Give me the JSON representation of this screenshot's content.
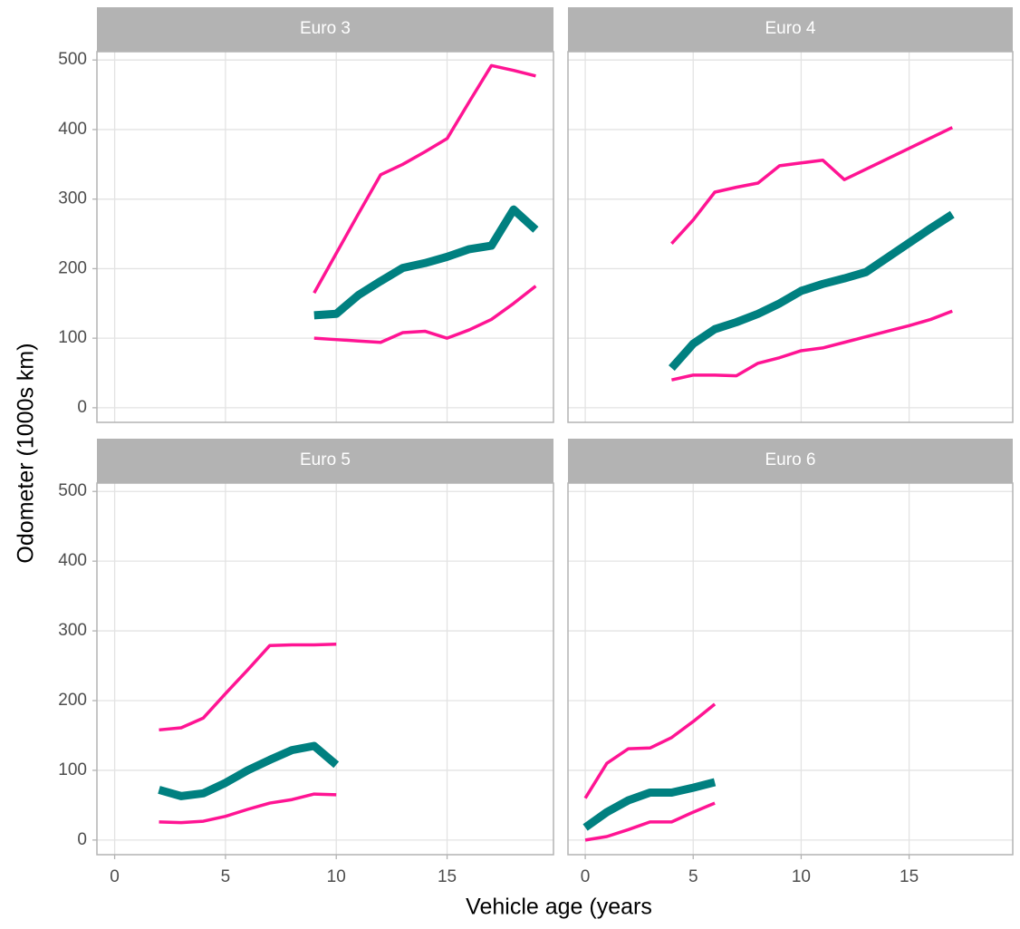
{
  "axis_labels": {
    "x": "Vehicle age (years",
    "y": "Odometer (1000s km)"
  },
  "chart_data": [
    {
      "type": "line",
      "title": "Euro 3",
      "x": [
        9,
        10,
        11,
        12,
        13,
        14,
        15,
        16,
        17,
        18,
        19
      ],
      "xlim": [
        -0.8,
        19.8
      ],
      "ylim": [
        -21,
        512
      ],
      "xticks": [
        0,
        5,
        10,
        15
      ],
      "yticks": [
        0,
        100,
        200,
        300,
        400,
        500
      ],
      "grid": true,
      "series": [
        {
          "color": "#ff1493",
          "linewidth": 3.5,
          "values": [
            165,
            222,
            279,
            335,
            350,
            368,
            387,
            440,
            492,
            485,
            477
          ]
        },
        {
          "color": "#008080",
          "linewidth": 9,
          "values": [
            133,
            135,
            162,
            182,
            201,
            208,
            217,
            228,
            233,
            285,
            256
          ]
        },
        {
          "color": "#ff1493",
          "linewidth": 3.5,
          "values": [
            100,
            98,
            96,
            94,
            108,
            110,
            100,
            112,
            127,
            150,
            175
          ]
        }
      ]
    },
    {
      "type": "line",
      "title": "Euro 4",
      "x": [
        4,
        5,
        6,
        7,
        8,
        9,
        10,
        11,
        12,
        13,
        14,
        15,
        16,
        17
      ],
      "xlim": [
        -0.8,
        19.8
      ],
      "ylim": [
        -21,
        512
      ],
      "xticks": [
        0,
        5,
        10,
        15
      ],
      "yticks": [
        0,
        100,
        200,
        300,
        400,
        500
      ],
      "grid": true,
      "series": [
        {
          "color": "#ff1493",
          "linewidth": 3.5,
          "values": [
            236,
            270,
            310,
            317,
            323,
            348,
            352,
            356,
            328,
            343,
            358,
            373,
            388,
            403
          ]
        },
        {
          "color": "#008080",
          "linewidth": 9,
          "values": [
            57,
            92,
            113,
            123,
            135,
            150,
            168,
            178,
            186,
            195,
            216,
            237,
            258,
            278
          ]
        },
        {
          "color": "#ff1493",
          "linewidth": 3.5,
          "values": [
            40,
            47,
            47,
            46,
            64,
            72,
            82,
            86,
            94,
            102,
            110,
            118,
            127,
            139
          ]
        }
      ]
    },
    {
      "type": "line",
      "title": "Euro 5",
      "x": [
        2,
        3,
        4,
        5,
        6,
        7,
        8,
        9,
        10
      ],
      "xlim": [
        -0.8,
        19.8
      ],
      "ylim": [
        -21,
        512
      ],
      "xticks": [
        0,
        5,
        10,
        15
      ],
      "yticks": [
        0,
        100,
        200,
        300,
        400,
        500
      ],
      "grid": true,
      "series": [
        {
          "color": "#ff1493",
          "linewidth": 3.5,
          "values": [
            158,
            161,
            175,
            210,
            244,
            279,
            280,
            280,
            281
          ]
        },
        {
          "color": "#008080",
          "linewidth": 9,
          "values": [
            72,
            63,
            67,
            82,
            100,
            115,
            129,
            135,
            108
          ]
        },
        {
          "color": "#ff1493",
          "linewidth": 3.5,
          "values": [
            26,
            25,
            27,
            34,
            44,
            53,
            58,
            66,
            65
          ]
        }
      ]
    },
    {
      "type": "line",
      "title": "Euro 6",
      "x": [
        0,
        1,
        2,
        3,
        4,
        5,
        6
      ],
      "xlim": [
        -0.8,
        19.8
      ],
      "ylim": [
        -21,
        512
      ],
      "xticks": [
        0,
        5,
        10,
        15
      ],
      "yticks": [
        0,
        100,
        200,
        300,
        400,
        500
      ],
      "grid": true,
      "series": [
        {
          "color": "#ff1493",
          "linewidth": 3.5,
          "values": [
            60,
            110,
            131,
            132,
            147,
            170,
            195
          ]
        },
        {
          "color": "#008080",
          "linewidth": 9,
          "values": [
            18,
            40,
            57,
            68,
            68,
            75,
            83
          ]
        },
        {
          "color": "#ff1493",
          "linewidth": 3.5,
          "values": [
            0,
            5,
            15,
            26,
            26,
            40,
            53
          ]
        }
      ]
    }
  ]
}
